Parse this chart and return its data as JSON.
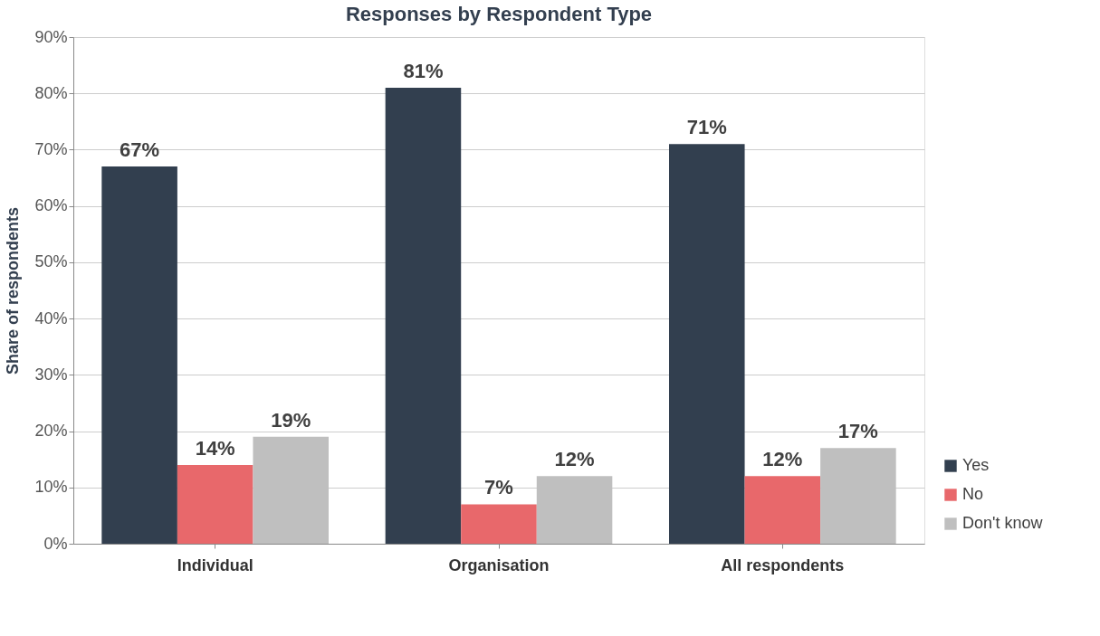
{
  "chart_data": {
    "type": "bar",
    "title": "Responses by Respondent Type",
    "ylabel": "Share of respondents",
    "categories": [
      "Individual",
      "Organisation",
      "All respondents"
    ],
    "series": [
      {
        "name": "Yes",
        "color": "#323f4f",
        "values": [
          67,
          81,
          71
        ],
        "value_labels": [
          "67%",
          "81%",
          "71%"
        ]
      },
      {
        "name": "No",
        "color": "#e8686b",
        "values": [
          14,
          7,
          12
        ],
        "value_labels": [
          "14%",
          "7%",
          "12%"
        ]
      },
      {
        "name": "Don't know",
        "color": "#bfbfbf",
        "values": [
          19,
          12,
          17
        ],
        "value_labels": [
          "19%",
          "12%",
          "17%"
        ]
      }
    ],
    "ylim": [
      0,
      90
    ],
    "yticks": [
      {
        "value": 0,
        "label": "0%"
      },
      {
        "value": 10,
        "label": "10%"
      },
      {
        "value": 20,
        "label": "20%"
      },
      {
        "value": 30,
        "label": "30%"
      },
      {
        "value": 40,
        "label": "40%"
      },
      {
        "value": 50,
        "label": "50%"
      },
      {
        "value": 60,
        "label": "60%"
      },
      {
        "value": 70,
        "label": "70%"
      },
      {
        "value": 80,
        "label": "80%"
      },
      {
        "value": 90,
        "label": "90%"
      }
    ],
    "grid": "y",
    "legend": "bottom right"
  }
}
